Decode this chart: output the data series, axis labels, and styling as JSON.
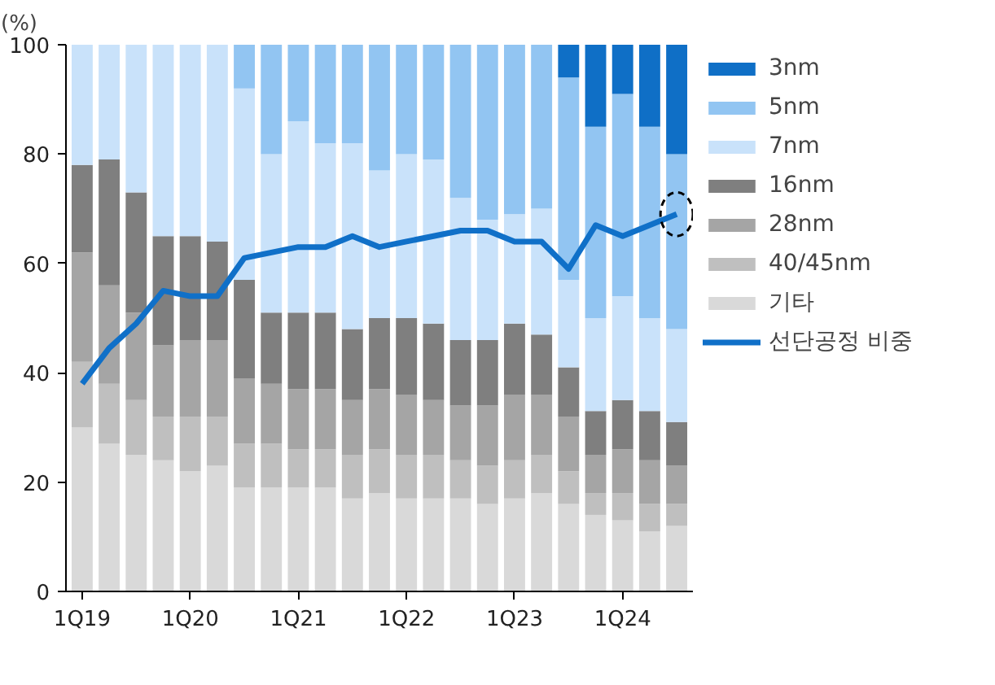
{
  "chart_data": {
    "type": "bar",
    "stacked": true,
    "ylabel": "(%)",
    "categories": [
      "1Q19",
      null,
      null,
      null,
      "1Q20",
      null,
      null,
      null,
      "1Q21",
      null,
      null,
      null,
      "1Q22",
      null,
      null,
      null,
      "1Q23",
      null,
      null,
      null,
      "1Q24",
      null,
      null
    ],
    "ylim": [
      0,
      100
    ],
    "yticks": [
      0,
      20,
      40,
      60,
      80,
      100
    ],
    "grid": false,
    "legend": "right",
    "series": [
      {
        "name": "기타",
        "color": "#d9d9d9",
        "values": [
          30,
          27,
          25,
          24,
          22,
          23,
          19,
          19,
          19,
          19,
          17,
          18,
          17,
          17,
          17,
          16,
          17,
          18,
          16,
          14,
          13,
          11,
          12
        ]
      },
      {
        "name": "40/45nm",
        "color": "#bfbfbf",
        "values": [
          12,
          11,
          10,
          8,
          10,
          9,
          8,
          8,
          7,
          7,
          8,
          8,
          8,
          8,
          7,
          7,
          7,
          7,
          6,
          4,
          5,
          5,
          4
        ]
      },
      {
        "name": "28nm",
        "color": "#a5a5a5",
        "values": [
          20,
          18,
          16,
          13,
          14,
          14,
          12,
          11,
          11,
          11,
          10,
          11,
          11,
          10,
          10,
          11,
          12,
          11,
          10,
          7,
          8,
          8,
          7
        ]
      },
      {
        "name": "16nm",
        "color": "#7f7f7f",
        "values": [
          16,
          23,
          22,
          20,
          19,
          18,
          18,
          13,
          14,
          14,
          13,
          13,
          14,
          14,
          12,
          12,
          13,
          11,
          9,
          8,
          9,
          9,
          8
        ]
      },
      {
        "name": "7nm",
        "color": "#c9e2fa",
        "values": [
          22,
          21,
          27,
          35,
          35,
          36,
          35,
          29,
          35,
          31,
          34,
          27,
          30,
          30,
          26,
          22,
          20,
          23,
          16,
          17,
          19,
          17,
          17
        ]
      },
      {
        "name": "5nm",
        "color": "#92c5f2",
        "values": [
          0,
          0,
          0,
          0,
          0,
          0,
          8,
          20,
          14,
          18,
          18,
          23,
          20,
          21,
          28,
          32,
          31,
          30,
          37,
          35,
          37,
          35,
          32
        ]
      },
      {
        "name": "3nm",
        "color": "#0f6fc6",
        "values": [
          0,
          0,
          0,
          0,
          0,
          0,
          0,
          0,
          0,
          0,
          0,
          0,
          0,
          0,
          0,
          0,
          0,
          0,
          6,
          15,
          9,
          15,
          20
        ]
      },
      {
        "name": "선단공정 비중",
        "type": "line",
        "color": "#1070c8",
        "values": [
          38,
          44.5,
          49,
          55,
          54,
          54,
          61,
          62,
          63,
          63,
          65,
          63,
          64,
          65,
          66,
          66,
          64,
          64,
          59,
          67,
          65,
          67,
          69
        ]
      }
    ]
  }
}
